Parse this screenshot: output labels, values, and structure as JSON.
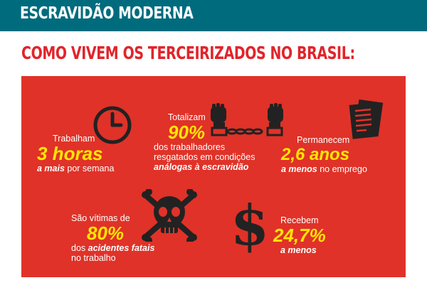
{
  "header": {
    "title": "ESCRAVIDÃO MODERNA",
    "headline": "COMO VIVEM OS TERCEIRIZADOS NO BRASIL:"
  },
  "colors": {
    "banner": "#006b7d",
    "headline": "#e1242b",
    "panel": "#e03228",
    "highlight": "#ffe600",
    "icon": "#222222"
  },
  "stats": {
    "hours": {
      "icon": "clock-icon",
      "pre": "Trabalham",
      "value": "3 horas",
      "emph": "a mais",
      "post": " por semana"
    },
    "rescued": {
      "icon": "chained-fists-icon",
      "pre": "Totalizam",
      "value": "90%",
      "line1": "dos trabalhadores",
      "line2": "resgatados em condições",
      "emph": "análogas à escravidão"
    },
    "tenure": {
      "icon": "document-icon",
      "pre": "Permanecem",
      "value": "2,6 anos",
      "emph": "a menos",
      "post": " no emprego"
    },
    "accidents": {
      "icon": "skull-crossbones-icon",
      "pre": "São vítimas de",
      "value": "80%",
      "line1": "dos ",
      "emph": "acidentes fatais",
      "line2": "no trabalho"
    },
    "pay": {
      "icon": "dollar-sign-icon",
      "pre": "Recebem",
      "value": "24,7%",
      "emph": "a menos"
    }
  }
}
